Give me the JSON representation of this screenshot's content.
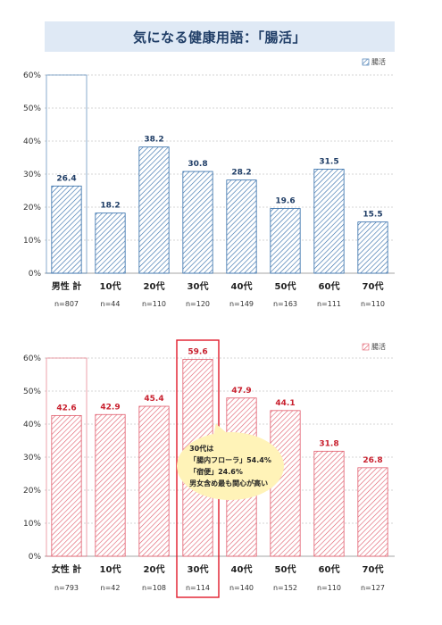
{
  "title": "気になる健康用語：「腸活」",
  "chart_data": [
    {
      "type": "bar",
      "group": "male",
      "legend": "腸活",
      "categories": [
        "男性 計",
        "10代",
        "20代",
        "30代",
        "40代",
        "50代",
        "60代",
        "70代"
      ],
      "n_labels": [
        "n=807",
        "n=44",
        "n=110",
        "n=120",
        "n=149",
        "n=163",
        "n=111",
        "n=110"
      ],
      "values": [
        26.4,
        18.2,
        38.2,
        30.8,
        28.2,
        19.6,
        31.5,
        15.5
      ],
      "value_labels": [
        "26.4",
        "18.2",
        "38.2",
        "30.8",
        "28.2",
        "19.6",
        "31.5",
        "15.5"
      ],
      "ylim": [
        0,
        60
      ],
      "yticks": [
        "0%",
        "10%",
        "20%",
        "30%",
        "40%",
        "50%",
        "60%"
      ],
      "color": "#2e6aa8",
      "highlight_index": 0
    },
    {
      "type": "bar",
      "group": "female",
      "legend": "腸活",
      "categories": [
        "女性 計",
        "10代",
        "20代",
        "30代",
        "40代",
        "50代",
        "60代",
        "70代"
      ],
      "n_labels": [
        "n=793",
        "n=42",
        "n=108",
        "n=114",
        "n=140",
        "n=152",
        "n=110",
        "n=127"
      ],
      "values": [
        42.6,
        42.9,
        45.4,
        59.6,
        47.9,
        44.1,
        31.8,
        26.8
      ],
      "value_labels": [
        "42.6",
        "42.9",
        "45.4",
        "59.6",
        "47.9",
        "44.1",
        "31.8",
        "26.8"
      ],
      "ylim": [
        0,
        60
      ],
      "yticks": [
        "0%",
        "10%",
        "20%",
        "30%",
        "40%",
        "50%",
        "60%"
      ],
      "color": "#e05a6a",
      "label_color": "#c8202e",
      "highlight_index": 0,
      "emphasis_index": 3
    }
  ],
  "callout": {
    "lines": [
      "30代は",
      "「腸内フローラ」54.4%",
      "「宿便」24.6%",
      "男女含め最も関心が高い"
    ]
  }
}
